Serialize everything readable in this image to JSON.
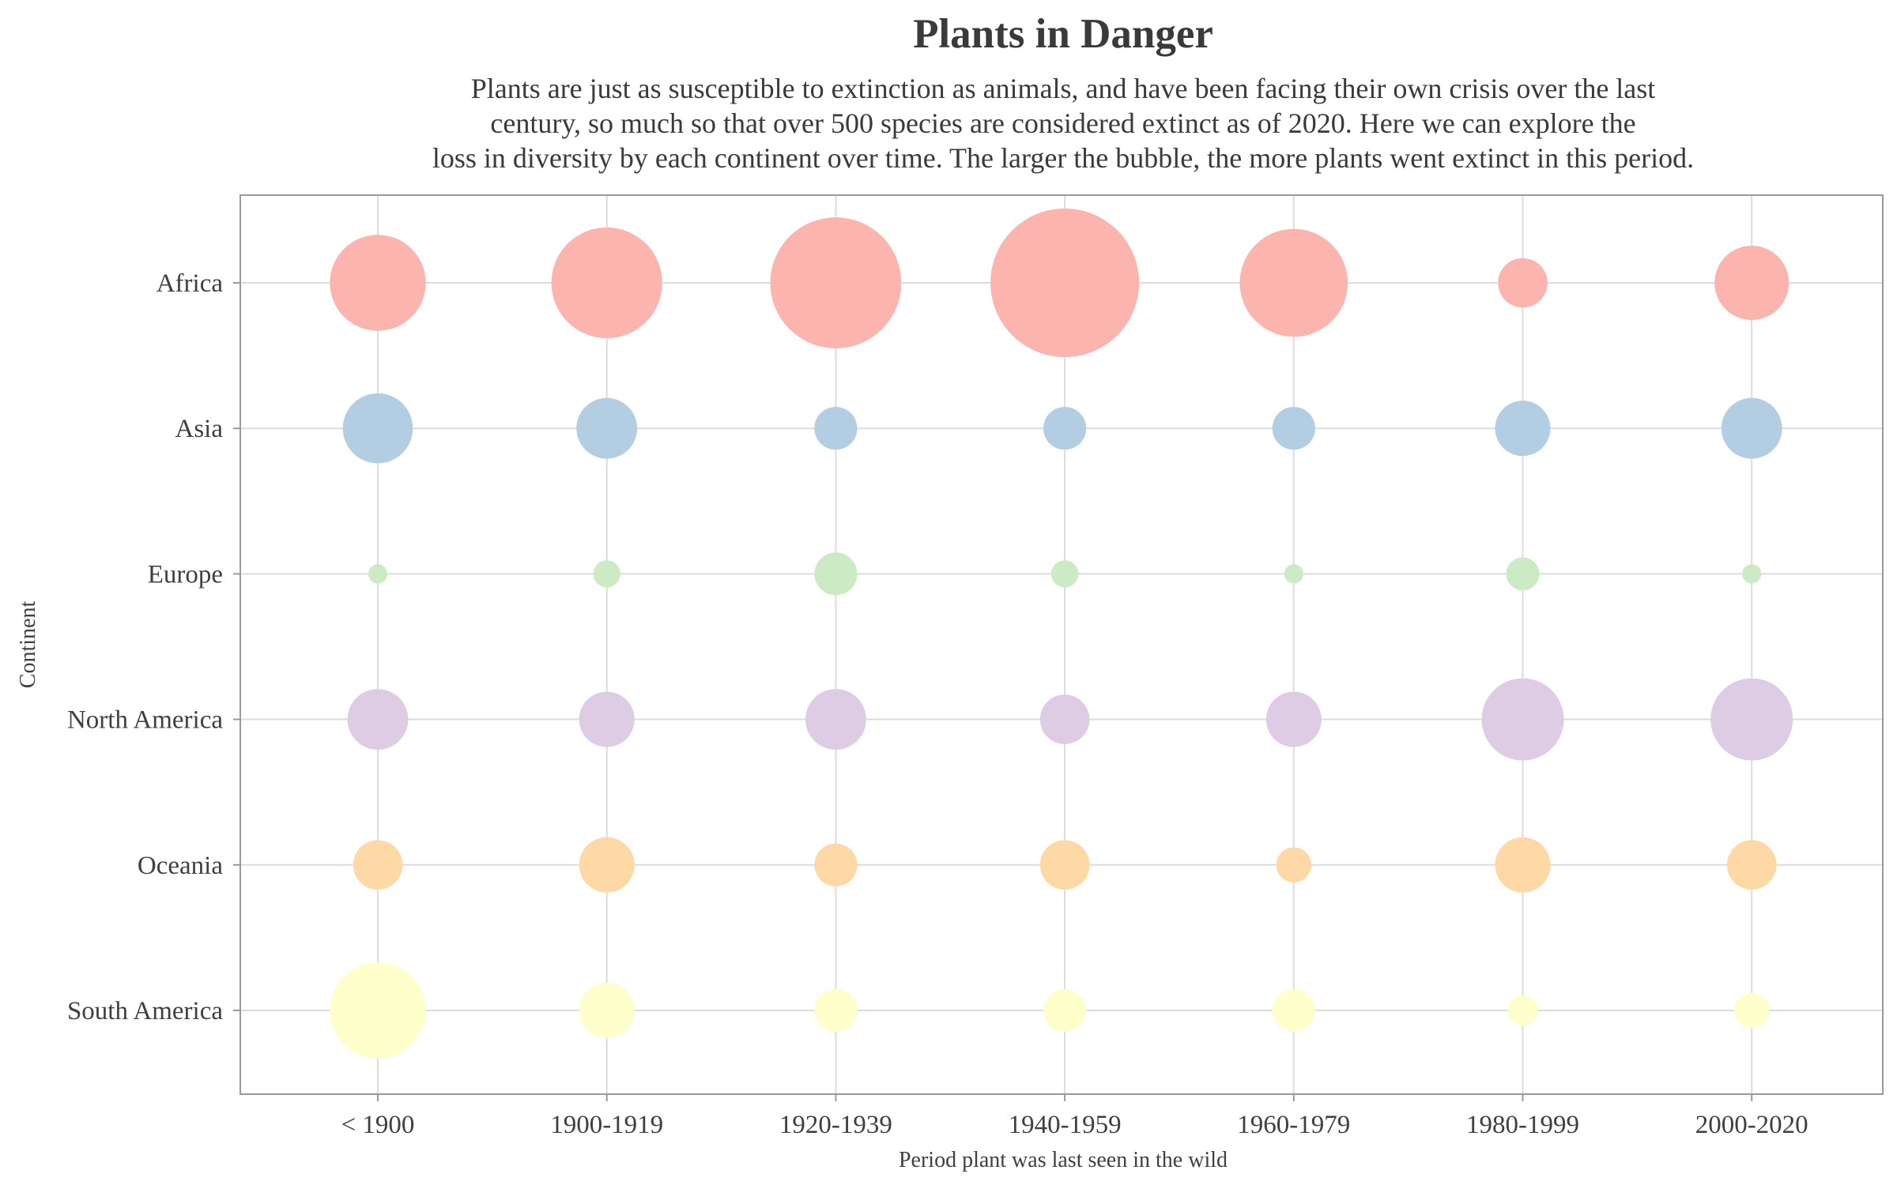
{
  "chart_data": {
    "type": "scatter",
    "title": "Plants in Danger",
    "subtitle": [
      "Plants are just as susceptible to extinction as animals, and have been facing their own crisis over the last",
      "century, so much so that over 500 species are considered extinct as of 2020. Here we can explore the",
      "loss in diversity by each continent over time. The larger the bubble, the more plants went extinct in this period."
    ],
    "xlabel": "Period plant was last seen in the wild",
    "ylabel": "Continent",
    "x_categories": [
      "< 1900",
      "1900-1919",
      "1920-1939",
      "1940-1959",
      "1960-1979",
      "1980-1999",
      "2000-2020"
    ],
    "y_categories": [
      "Africa",
      "Asia",
      "Europe",
      "North America",
      "Oceania",
      "South America"
    ],
    "grid": true,
    "legend": "none",
    "size_encoding": "number of plant species extinct (relative)",
    "series": [
      {
        "name": "Africa",
        "color": "#fbb4ae",
        "values": [
          15,
          20,
          28,
          36,
          19,
          4,
          9
        ]
      },
      {
        "name": "Asia",
        "color": "#b3cde3",
        "values": [
          8,
          6,
          3,
          3,
          3,
          5,
          6
        ]
      },
      {
        "name": "Europe",
        "color": "#ccebc5",
        "values": [
          0.6,
          1.2,
          3,
          1.2,
          0.6,
          1.8,
          0.6
        ]
      },
      {
        "name": "North America",
        "color": "#decbe4",
        "values": [
          6,
          5,
          6,
          4,
          5,
          11,
          11
        ]
      },
      {
        "name": "Oceania",
        "color": "#fed9a6",
        "values": [
          4,
          5,
          3,
          4,
          2,
          5,
          4
        ]
      },
      {
        "name": "South America",
        "color": "#ffffcc",
        "values": [
          15,
          5,
          3,
          3,
          3,
          1.5,
          2
        ]
      }
    ]
  }
}
